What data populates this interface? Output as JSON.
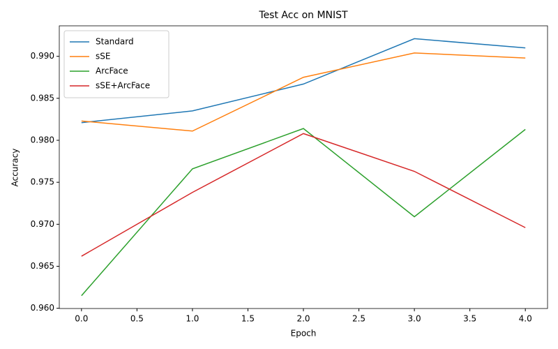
{
  "chart_data": {
    "type": "line",
    "title": "Test Acc on MNIST",
    "xlabel": "Epoch",
    "ylabel": "Accuracy",
    "x": [
      0,
      1,
      2,
      3,
      4
    ],
    "series": [
      {
        "name": "Standard",
        "color": "#1f77b4",
        "values": [
          0.9821,
          0.9835,
          0.9867,
          0.9921,
          0.991
        ]
      },
      {
        "name": "sSE",
        "color": "#ff7f0e",
        "values": [
          0.9823,
          0.9811,
          0.9875,
          0.9904,
          0.9898
        ]
      },
      {
        "name": "ArcFace",
        "color": "#2ca02c",
        "values": [
          0.9615,
          0.9766,
          0.9814,
          0.9709,
          0.9813
        ]
      },
      {
        "name": "sSE+ArcFace",
        "color": "#d62728",
        "values": [
          0.9662,
          0.9738,
          0.9808,
          0.9763,
          0.9696
        ]
      }
    ],
    "xlim": [
      -0.2,
      4.2
    ],
    "xticks": [
      {
        "value": 0,
        "label": "0.0"
      },
      {
        "value": 0.5,
        "label": "0.5"
      },
      {
        "value": 1,
        "label": "1.0"
      },
      {
        "value": 1.5,
        "label": "1.5"
      },
      {
        "value": 2,
        "label": "2.0"
      },
      {
        "value": 2.5,
        "label": "2.5"
      },
      {
        "value": 3,
        "label": "3.0"
      },
      {
        "value": 3.5,
        "label": "3.5"
      },
      {
        "value": 4,
        "label": "4.0"
      }
    ],
    "ylim": [
      0.95997,
      0.99363
    ],
    "yticks": [
      {
        "value": 0.96,
        "label": "0.960"
      },
      {
        "value": 0.965,
        "label": "0.965"
      },
      {
        "value": 0.97,
        "label": "0.970"
      },
      {
        "value": 0.975,
        "label": "0.975"
      },
      {
        "value": 0.98,
        "label": "0.980"
      },
      {
        "value": 0.985,
        "label": "0.985"
      },
      {
        "value": 0.99,
        "label": "0.990"
      }
    ],
    "grid": false,
    "legend": "upper-left"
  }
}
